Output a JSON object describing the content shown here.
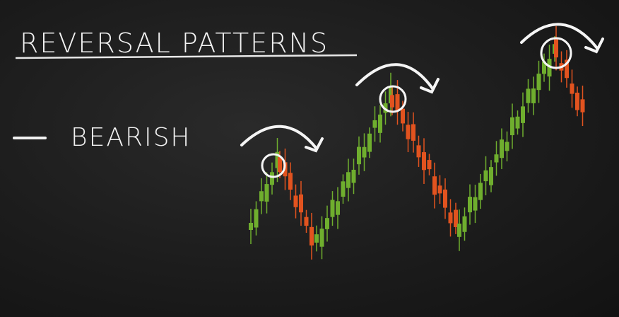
{
  "header": {
    "title": "REVERSAL PATTERNS"
  },
  "label": {
    "text": "BEARISH"
  }
}
